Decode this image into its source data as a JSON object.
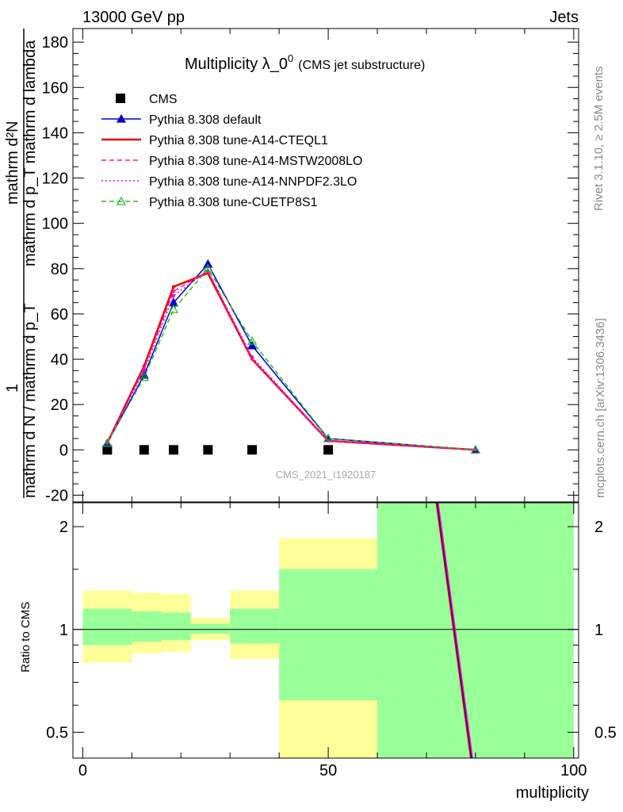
{
  "header": {
    "left": "13000 GeV pp",
    "right": "Jets"
  },
  "side_labels": {
    "rivet": "Rivet 3.1.10, ≥ 2.5M events",
    "mcplots": "mcplots.cern.ch [arXiv:1306.3436]"
  },
  "watermark": "CMS_2021_I1920187",
  "chart_data": [
    {
      "type": "line",
      "title": "Multiplicity λ_0",
      "title_sup": "0",
      "subtitle": "(CMS jet substructure)",
      "ylabel_numer": "mathrm d²N",
      "ylabel_numer_sub": "mathrm d p_T mathrm d lambda",
      "ylabel_one": "1",
      "ylabel_denom": "mathrm d N / mathrm d p_T",
      "ylim": [
        -23,
        186
      ],
      "xlim": [
        -2,
        101
      ],
      "yticks": [
        -20,
        0,
        20,
        40,
        60,
        80,
        100,
        120,
        140,
        160,
        180
      ],
      "legend_position": "top-left",
      "series": [
        {
          "name": "CMS",
          "color": "#000000",
          "style": "data",
          "x": [
            5,
            12.5,
            18.5,
            25.5,
            34.5,
            50
          ],
          "y": [
            0,
            0,
            0,
            0,
            0,
            0
          ]
        },
        {
          "name": "Pythia 8.308 default",
          "color": "#0000cc",
          "style": "solid-triangle",
          "x": [
            5,
            12.5,
            18.5,
            25.5,
            34.5,
            50,
            80
          ],
          "y": [
            3,
            33,
            65,
            82,
            46,
            5,
            0
          ]
        },
        {
          "name": "Pythia 8.308 tune-A14-CTEQL1",
          "color": "#ee0000",
          "style": "solid-thick",
          "x": [
            5,
            12.5,
            18.5,
            25.5,
            34.5,
            50,
            80
          ],
          "y": [
            3,
            37,
            72,
            78,
            40,
            4,
            0
          ]
        },
        {
          "name": "Pythia 8.308 tune-A14-MSTW2008LO",
          "color": "#ff1493",
          "style": "dashed",
          "x": [
            5,
            12.5,
            18.5,
            25.5,
            34.5,
            50,
            80
          ],
          "y": [
            3,
            36,
            70,
            79,
            40,
            4,
            0
          ]
        },
        {
          "name": "Pythia 8.308 tune-A14-NNPDF2.3LO",
          "color": "#ee00ee",
          "style": "dotted",
          "x": [
            5,
            12.5,
            18.5,
            25.5,
            34.5,
            50,
            80
          ],
          "y": [
            3,
            35,
            68,
            79,
            41,
            4,
            0
          ]
        },
        {
          "name": "Pythia 8.308 tune-CUETP8S1",
          "color": "#22bb22",
          "style": "dashed-open-triangle",
          "x": [
            5,
            12.5,
            18.5,
            25.5,
            34.5,
            50,
            80
          ],
          "y": [
            3,
            32,
            62,
            80,
            48,
            5,
            0
          ]
        }
      ]
    },
    {
      "type": "line",
      "ylabel": "Ratio to CMS",
      "xlabel": "multiplicity",
      "xlim": [
        -2,
        101
      ],
      "ylim": [
        0.42,
        2.35
      ],
      "yscale": "log",
      "yticks": [
        0.5,
        1,
        2
      ],
      "xticks": [
        0,
        50,
        100
      ],
      "reference_line": 1,
      "bands": [
        {
          "x0": 0,
          "x1": 10,
          "yellow": [
            0.8,
            1.3
          ],
          "green": [
            0.9,
            1.15
          ]
        },
        {
          "x0": 10,
          "x1": 16,
          "yellow": [
            0.85,
            1.28
          ],
          "green": [
            0.92,
            1.13
          ]
        },
        {
          "x0": 16,
          "x1": 22,
          "yellow": [
            0.86,
            1.27
          ],
          "green": [
            0.93,
            1.12
          ]
        },
        {
          "x0": 22,
          "x1": 30,
          "yellow": [
            0.93,
            1.08
          ],
          "green": [
            0.97,
            1.04
          ]
        },
        {
          "x0": 30,
          "x1": 40,
          "yellow": [
            0.82,
            1.3
          ],
          "green": [
            0.91,
            1.15
          ]
        },
        {
          "x0": 40,
          "x1": 60,
          "yellow": [
            0.42,
            1.85
          ],
          "green": [
            0.62,
            1.5
          ]
        },
        {
          "x0": 60,
          "x1": 100,
          "yellow": [
            0.42,
            2.35
          ],
          "green": [
            0.42,
            2.35
          ]
        }
      ],
      "ratio_lines": [
        {
          "color": "#ee0000",
          "x": [
            72,
            79
          ],
          "y": [
            2.35,
            0.4
          ]
        },
        {
          "color": "#0000cc",
          "x": [
            72.2,
            79.2
          ],
          "y": [
            2.35,
            0.4
          ]
        },
        {
          "color": "#ff1493",
          "x": [
            72.4,
            79.4
          ],
          "y": [
            2.35,
            0.4
          ]
        }
      ]
    }
  ]
}
